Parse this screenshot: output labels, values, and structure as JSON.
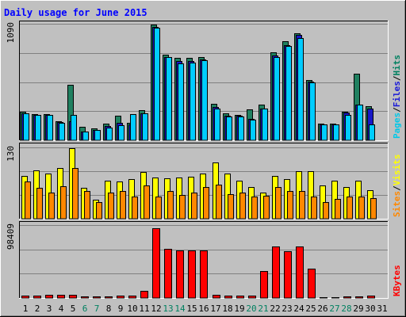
{
  "chart_data": {
    "type": "bar",
    "title": "Daily usage for June 2015",
    "categories": [
      "1",
      "2",
      "3",
      "4",
      "5",
      "6",
      "7",
      "8",
      "9",
      "10",
      "11",
      "12",
      "13",
      "14",
      "15",
      "16",
      "17",
      "18",
      "19",
      "20",
      "21",
      "22",
      "23",
      "24",
      "25",
      "26",
      "27",
      "28",
      "29",
      "30",
      "31"
    ],
    "weekend_days": [
      6,
      7,
      13,
      14,
      20,
      21,
      27,
      28
    ],
    "panels": [
      {
        "id": "hits",
        "ymax_label": "1090",
        "ymax": 1090,
        "legend": [
          "Pages",
          "Files",
          "Hits"
        ],
        "legend_colors": [
          "#00c8e8",
          "#1818d8",
          "#008060"
        ],
        "series": [
          {
            "name": "Hits",
            "color": "#208060",
            "values": [
              270,
              245,
              245,
              180,
              520,
              125,
              110,
              155,
              230,
              165,
              280,
              1080,
              800,
              770,
              770,
              780,
              340,
              250,
              240,
              290,
              330,
              825,
              930,
              1000,
              560,
              155,
              155,
              270,
              620,
              320,
              0
            ]
          },
          {
            "name": "Files",
            "color": "#1818c8",
            "values": [
              250,
              240,
              235,
              170,
              180,
              85,
              95,
              130,
              165,
              150,
              250,
              1060,
              780,
              740,
              740,
              760,
              310,
              230,
              230,
              200,
              300,
              790,
              890,
              985,
              550,
              150,
              150,
              260,
              330,
              300,
              0
            ]
          },
          {
            "name": "Pages",
            "color": "#00ccff",
            "values": [
              250,
              240,
              235,
              165,
              240,
              80,
              95,
              120,
              140,
              245,
              250,
              1050,
              780,
              720,
              730,
              750,
              300,
              220,
              220,
              190,
              300,
              780,
              880,
              960,
              540,
              150,
              150,
              240,
              330,
              145,
              0
            ]
          }
        ]
      },
      {
        "id": "visits",
        "ymax_label": "130",
        "ymax": 130,
        "legend": [
          "Sites",
          "Visits"
        ],
        "legend_colors": [
          "#ff8800",
          "#ffff00"
        ],
        "series": [
          {
            "name": "Visits",
            "color": "#ffff00",
            "values": [
              78,
              88,
              82,
              92,
              128,
              57,
              35,
              70,
              68,
              72,
              85,
              75,
              73,
              75,
              76,
              82,
              102,
              82,
              70,
              58,
              48,
              78,
              72,
              86,
              86,
              60,
              70,
              58,
              70,
              52,
              0
            ]
          },
          {
            "name": "Sites",
            "color": "#ff8800",
            "values": [
              68,
              57,
              47,
              59,
              92,
              50,
              30,
              47,
              50,
              40,
              60,
              40,
              50,
              43,
              48,
              58,
              62,
              45,
              48,
              40,
              42,
              58,
              50,
              50,
              40,
              30,
              36,
              40,
              40,
              37,
              0
            ]
          }
        ]
      },
      {
        "id": "kbytes",
        "ymax_label": "98409",
        "ymax": 98409,
        "legend": [
          "KBytes"
        ],
        "legend_colors": [
          "#ff0000"
        ],
        "series": [
          {
            "name": "KBytes",
            "color": "#ff0000",
            "values": [
              3700,
              3700,
              4000,
              4100,
              4200,
              1800,
              2000,
              2200,
              3100,
              3000,
              10100,
              94000,
              66000,
              64300,
              64000,
              64300,
              4000,
              3700,
              3600,
              3700,
              36700,
              69600,
              63300,
              69200,
              39200,
              1200,
              1400,
              2000,
              2000,
              3600,
              0
            ]
          }
        ]
      }
    ],
    "grid": true
  }
}
